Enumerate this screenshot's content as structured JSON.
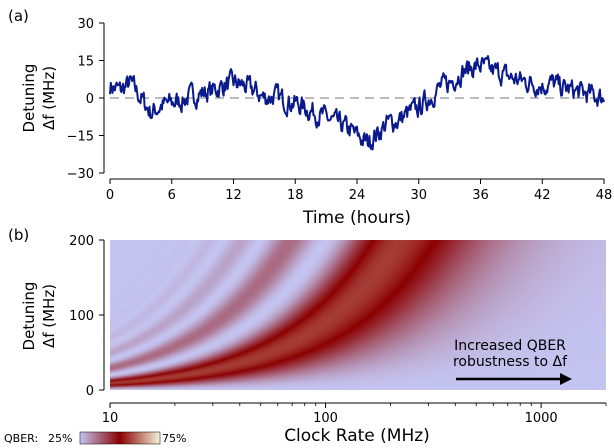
{
  "chart_data": [
    {
      "panel_label": "(a)",
      "type": "line",
      "xlabel": "Time (hours)",
      "ylabel_line1": "Detuning",
      "ylabel_line2": "Δf (MHz)",
      "xlim": [
        0,
        48
      ],
      "ylim": [
        -30,
        30
      ],
      "xticks": [
        0,
        6,
        12,
        18,
        24,
        30,
        36,
        42,
        48
      ],
      "yticks": [
        30,
        15,
        0,
        -15,
        -30
      ],
      "ytick_labels": [
        "30",
        "15",
        "0",
        "−15",
        "−30"
      ],
      "reference_line_y": 0,
      "series": [
        {
          "color": "#0a1a8c",
          "x": [
            0,
            1,
            2,
            3,
            4,
            5,
            6,
            7,
            8,
            9,
            10,
            11,
            12,
            13,
            14,
            15,
            16,
            17,
            18,
            19,
            20,
            21,
            22,
            23,
            24,
            25,
            26,
            27,
            28,
            29,
            30,
            31,
            32,
            33,
            34,
            35,
            36,
            37,
            38,
            39,
            40,
            41,
            42,
            43,
            44,
            45,
            46,
            47,
            48
          ],
          "y": [
            5,
            3,
            6,
            0,
            -6,
            -3,
            -2,
            -1,
            1,
            2,
            3,
            5,
            6,
            5,
            3,
            0,
            1,
            -1,
            -2,
            -4,
            -6,
            -8,
            -10,
            -12,
            -15,
            -18,
            -14,
            -10,
            -9,
            -6,
            -4,
            0,
            4,
            6,
            10,
            12,
            13,
            11,
            10,
            8,
            7,
            6,
            5,
            6,
            4,
            3,
            2,
            1,
            0
          ]
        }
      ]
    },
    {
      "panel_label": "(b)",
      "type": "heatmap",
      "xlabel": "Clock Rate (MHz)",
      "ylabel_line1": "Detuning",
      "ylabel_line2": "Δf (MHz)",
      "xscale": "log",
      "xlim": [
        10,
        2000
      ],
      "ylim": [
        0,
        200
      ],
      "xticks": [
        10,
        100,
        1000
      ],
      "xtick_labels": [
        "10",
        "100",
        "1000"
      ],
      "yticks": [
        0,
        100,
        200
      ],
      "ytick_labels": [
        "0",
        "100",
        "200"
      ],
      "annotation_line1": "Increased QBER",
      "annotation_line2": "robustness to Δf",
      "colorbar": {
        "label_prefix": "QBER:",
        "min_label": "25%",
        "max_label": "75%",
        "colors": [
          "#c4c4f0",
          "#8b0000",
          "#f4f4d8"
        ]
      }
    }
  ]
}
